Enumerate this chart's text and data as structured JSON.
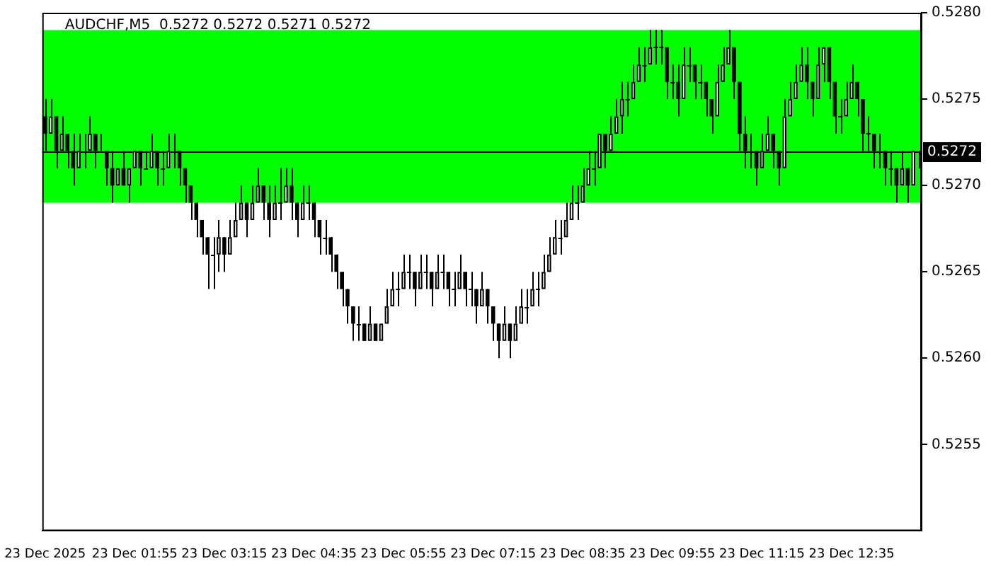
{
  "chart_data": {
    "type": "candlestick",
    "title": "AUDCHF,M5  0.5272 0.5272 0.5271 0.5272",
    "categories": [
      "23 Dec 2025",
      null,
      null,
      null,
      null,
      null,
      null,
      null,
      null,
      null,
      null,
      null,
      null,
      null,
      null,
      null,
      "23 Dec 01:55",
      null,
      null,
      null,
      null,
      null,
      null,
      null,
      null,
      null,
      null,
      null,
      null,
      null,
      null,
      null,
      "23 Dec 03:15",
      null,
      null,
      null,
      null,
      null,
      null,
      null,
      null,
      null,
      null,
      null,
      null,
      null,
      null,
      null,
      "23 Dec 04:35",
      null,
      null,
      null,
      null,
      null,
      null,
      null,
      null,
      null,
      null,
      null,
      null,
      null,
      null,
      null,
      "23 Dec 05:55",
      null,
      null,
      null,
      null,
      null,
      null,
      null,
      null,
      null,
      null,
      null,
      null,
      null,
      null,
      null,
      "23 Dec 07:15",
      null,
      null,
      null,
      null,
      null,
      null,
      null,
      null,
      null,
      null,
      null,
      null,
      null,
      null,
      null,
      "23 Dec 08:35",
      null,
      null,
      null,
      null,
      null,
      null,
      null,
      null,
      null,
      null,
      null,
      null,
      null,
      null,
      null,
      "23 Dec 09:55",
      null,
      null,
      null,
      null,
      null,
      null,
      null,
      null,
      null,
      null,
      null,
      null,
      null,
      null,
      null,
      "23 Dec 11:15",
      null,
      null,
      null,
      null,
      null,
      null,
      null,
      null,
      null,
      null,
      null,
      null,
      null,
      null,
      null,
      "23 Dec 12:35",
      null,
      null,
      null,
      null,
      null,
      null,
      null,
      null,
      null,
      null,
      null,
      null
    ],
    "ohlc": [
      [
        0.5274,
        0.5275,
        0.5272,
        0.5273
      ],
      [
        0.5273,
        0.5275,
        0.5273,
        0.5274
      ],
      [
        0.5274,
        0.5274,
        0.5271,
        0.5272
      ],
      [
        0.5272,
        0.5274,
        0.5272,
        0.5273
      ],
      [
        0.5273,
        0.5273,
        0.5271,
        0.5272
      ],
      [
        0.5272,
        0.5273,
        0.527,
        0.5271
      ],
      [
        0.5271,
        0.5273,
        0.5271,
        0.5272
      ],
      [
        0.5272,
        0.5273,
        0.5271,
        0.5272
      ],
      [
        0.5272,
        0.5274,
        0.5272,
        0.5273
      ],
      [
        0.5273,
        0.5273,
        0.5271,
        0.5272
      ],
      [
        0.5272,
        0.5273,
        0.5272,
        0.5272
      ],
      [
        0.5272,
        0.5272,
        0.527,
        0.5271
      ],
      [
        0.5271,
        0.5272,
        0.5269,
        0.527
      ],
      [
        0.527,
        0.5271,
        0.527,
        0.5271
      ],
      [
        0.5271,
        0.5272,
        0.527,
        0.527
      ],
      [
        0.527,
        0.5271,
        0.5269,
        0.5271
      ],
      [
        0.5271,
        0.5272,
        0.5271,
        0.5272
      ],
      [
        0.5272,
        0.5272,
        0.527,
        0.5271
      ],
      [
        0.5271,
        0.5272,
        0.5271,
        0.5271
      ],
      [
        0.5271,
        0.5273,
        0.5271,
        0.5272
      ],
      [
        0.5272,
        0.5272,
        0.527,
        0.5271
      ],
      [
        0.5271,
        0.5272,
        0.527,
        0.5271
      ],
      [
        0.5271,
        0.5273,
        0.5271,
        0.5272
      ],
      [
        0.5272,
        0.5273,
        0.5271,
        0.5272
      ],
      [
        0.5272,
        0.5272,
        0.527,
        0.5271
      ],
      [
        0.5271,
        0.5271,
        0.5269,
        0.527
      ],
      [
        0.527,
        0.527,
        0.5268,
        0.5269
      ],
      [
        0.5269,
        0.5269,
        0.5267,
        0.5268
      ],
      [
        0.5268,
        0.5268,
        0.5266,
        0.5267
      ],
      [
        0.5267,
        0.5267,
        0.5264,
        0.5266
      ],
      [
        0.5266,
        0.5267,
        0.5264,
        0.5266
      ],
      [
        0.5266,
        0.5268,
        0.5265,
        0.5267
      ],
      [
        0.5267,
        0.5267,
        0.5265,
        0.5266
      ],
      [
        0.5266,
        0.5268,
        0.5266,
        0.5267
      ],
      [
        0.5267,
        0.5269,
        0.5267,
        0.5268
      ],
      [
        0.5268,
        0.527,
        0.5268,
        0.5269
      ],
      [
        0.5269,
        0.5269,
        0.5267,
        0.5268
      ],
      [
        0.5268,
        0.527,
        0.5268,
        0.5269
      ],
      [
        0.5269,
        0.5271,
        0.5269,
        0.527
      ],
      [
        0.527,
        0.527,
        0.5268,
        0.5269
      ],
      [
        0.5269,
        0.527,
        0.5267,
        0.5268
      ],
      [
        0.5268,
        0.527,
        0.5268,
        0.5269
      ],
      [
        0.5269,
        0.5271,
        0.5268,
        0.5269
      ],
      [
        0.5269,
        0.5271,
        0.5269,
        0.527
      ],
      [
        0.527,
        0.5271,
        0.5268,
        0.5269
      ],
      [
        0.5269,
        0.5269,
        0.5267,
        0.5268
      ],
      [
        0.5268,
        0.527,
        0.5268,
        0.5269
      ],
      [
        0.5269,
        0.527,
        0.5268,
        0.5269
      ],
      [
        0.5269,
        0.5269,
        0.5267,
        0.5268
      ],
      [
        0.5268,
        0.5268,
        0.5266,
        0.5267
      ],
      [
        0.5267,
        0.5268,
        0.5266,
        0.5267
      ],
      [
        0.5267,
        0.5267,
        0.5265,
        0.5266
      ],
      [
        0.5266,
        0.5266,
        0.5264,
        0.5265
      ],
      [
        0.5265,
        0.5265,
        0.5263,
        0.5264
      ],
      [
        0.5264,
        0.5264,
        0.5262,
        0.5263
      ],
      [
        0.5263,
        0.5263,
        0.5261,
        0.5262
      ],
      [
        0.5262,
        0.5263,
        0.5261,
        0.5262
      ],
      [
        0.5262,
        0.5262,
        0.5261,
        0.5261
      ],
      [
        0.5261,
        0.5263,
        0.5261,
        0.5262
      ],
      [
        0.5262,
        0.5262,
        0.5261,
        0.5261
      ],
      [
        0.5261,
        0.5262,
        0.5261,
        0.5262
      ],
      [
        0.5262,
        0.5264,
        0.5262,
        0.5263
      ],
      [
        0.5263,
        0.5265,
        0.5263,
        0.5264
      ],
      [
        0.5264,
        0.5265,
        0.5263,
        0.5264
      ],
      [
        0.5264,
        0.5266,
        0.5264,
        0.5265
      ],
      [
        0.5265,
        0.5266,
        0.5264,
        0.5265
      ],
      [
        0.5265,
        0.5265,
        0.5263,
        0.5264
      ],
      [
        0.5264,
        0.5266,
        0.5264,
        0.5265
      ],
      [
        0.5265,
        0.5266,
        0.5264,
        0.5265
      ],
      [
        0.5265,
        0.5265,
        0.5263,
        0.5264
      ],
      [
        0.5264,
        0.5266,
        0.5264,
        0.5265
      ],
      [
        0.5265,
        0.5266,
        0.5264,
        0.5265
      ],
      [
        0.5265,
        0.5265,
        0.5263,
        0.5264
      ],
      [
        0.5264,
        0.5265,
        0.5263,
        0.5264
      ],
      [
        0.5264,
        0.5266,
        0.5264,
        0.5265
      ],
      [
        0.5265,
        0.5265,
        0.5263,
        0.5264
      ],
      [
        0.5264,
        0.5265,
        0.5263,
        0.5264
      ],
      [
        0.5264,
        0.5264,
        0.5262,
        0.5263
      ],
      [
        0.5263,
        0.5265,
        0.5263,
        0.5264
      ],
      [
        0.5264,
        0.5264,
        0.5262,
        0.5263
      ],
      [
        0.5263,
        0.5263,
        0.5261,
        0.5262
      ],
      [
        0.5262,
        0.5262,
        0.526,
        0.5261
      ],
      [
        0.5261,
        0.5263,
        0.5261,
        0.5262
      ],
      [
        0.5262,
        0.5262,
        0.526,
        0.5261
      ],
      [
        0.5261,
        0.5263,
        0.5261,
        0.5262
      ],
      [
        0.5262,
        0.5264,
        0.5262,
        0.5263
      ],
      [
        0.5263,
        0.5264,
        0.5262,
        0.5263
      ],
      [
        0.5263,
        0.5265,
        0.5263,
        0.5264
      ],
      [
        0.5264,
        0.5265,
        0.5263,
        0.5264
      ],
      [
        0.5264,
        0.5266,
        0.5264,
        0.5265
      ],
      [
        0.5265,
        0.5267,
        0.5265,
        0.5266
      ],
      [
        0.5266,
        0.5268,
        0.5266,
        0.5267
      ],
      [
        0.5267,
        0.5268,
        0.5266,
        0.5267
      ],
      [
        0.5267,
        0.5269,
        0.5267,
        0.5268
      ],
      [
        0.5268,
        0.527,
        0.5268,
        0.5269
      ],
      [
        0.5269,
        0.527,
        0.5268,
        0.5269
      ],
      [
        0.5269,
        0.5271,
        0.5269,
        0.527
      ],
      [
        0.527,
        0.5272,
        0.527,
        0.5271
      ],
      [
        0.5271,
        0.5272,
        0.527,
        0.5271
      ],
      [
        0.5271,
        0.5273,
        0.5271,
        0.5273
      ],
      [
        0.5273,
        0.5273,
        0.5271,
        0.5272
      ],
      [
        0.5272,
        0.5274,
        0.5272,
        0.5273
      ],
      [
        0.5273,
        0.5275,
        0.5273,
        0.5274
      ],
      [
        0.5274,
        0.5276,
        0.5273,
        0.5275
      ],
      [
        0.5275,
        0.5276,
        0.5274,
        0.5275
      ],
      [
        0.5275,
        0.5277,
        0.5275,
        0.5276
      ],
      [
        0.5276,
        0.5278,
        0.5276,
        0.5277
      ],
      [
        0.5277,
        0.5278,
        0.5276,
        0.5277
      ],
      [
        0.5277,
        0.5279,
        0.5277,
        0.5278
      ],
      [
        0.5278,
        0.5279,
        0.5277,
        0.5278
      ],
      [
        0.5278,
        0.5279,
        0.5277,
        0.5278
      ],
      [
        0.5278,
        0.5278,
        0.5275,
        0.5276
      ],
      [
        0.5276,
        0.5277,
        0.5275,
        0.5276
      ],
      [
        0.5276,
        0.5277,
        0.5274,
        0.5275
      ],
      [
        0.5275,
        0.5278,
        0.5275,
        0.5277
      ],
      [
        0.5277,
        0.5278,
        0.5276,
        0.5277
      ],
      [
        0.5277,
        0.5277,
        0.5275,
        0.5276
      ],
      [
        0.5276,
        0.5277,
        0.5275,
        0.5276
      ],
      [
        0.5276,
        0.5276,
        0.5274,
        0.5275
      ],
      [
        0.5275,
        0.5275,
        0.5273,
        0.5274
      ],
      [
        0.5274,
        0.5277,
        0.5274,
        0.5276
      ],
      [
        0.5276,
        0.5278,
        0.5276,
        0.5277
      ],
      [
        0.5277,
        0.5279,
        0.5277,
        0.5278
      ],
      [
        0.5278,
        0.5278,
        0.5275,
        0.5276
      ],
      [
        0.5276,
        0.5276,
        0.5272,
        0.5273
      ],
      [
        0.5273,
        0.5274,
        0.5271,
        0.5272
      ],
      [
        0.5272,
        0.5273,
        0.5271,
        0.5272
      ],
      [
        0.5272,
        0.5272,
        0.527,
        0.5271
      ],
      [
        0.5271,
        0.5273,
        0.5271,
        0.5272
      ],
      [
        0.5272,
        0.5274,
        0.5272,
        0.5273
      ],
      [
        0.5273,
        0.5273,
        0.5271,
        0.5272
      ],
      [
        0.5272,
        0.5272,
        0.527,
        0.5271
      ],
      [
        0.5271,
        0.5275,
        0.5271,
        0.5274
      ],
      [
        0.5274,
        0.5276,
        0.5274,
        0.5275
      ],
      [
        0.5275,
        0.5277,
        0.5275,
        0.5276
      ],
      [
        0.5276,
        0.5278,
        0.5276,
        0.5277
      ],
      [
        0.5277,
        0.5278,
        0.5275,
        0.5276
      ],
      [
        0.5276,
        0.5276,
        0.5274,
        0.5275
      ],
      [
        0.5275,
        0.5278,
        0.5275,
        0.5277
      ],
      [
        0.5277,
        0.5278,
        0.5276,
        0.5278
      ],
      [
        0.5278,
        0.5278,
        0.5275,
        0.5276
      ],
      [
        0.5276,
        0.5276,
        0.5273,
        0.5274
      ],
      [
        0.5274,
        0.5275,
        0.5273,
        0.5274
      ],
      [
        0.5274,
        0.5276,
        0.5274,
        0.5275
      ],
      [
        0.5275,
        0.5277,
        0.5275,
        0.5276
      ],
      [
        0.5276,
        0.5276,
        0.5274,
        0.5275
      ],
      [
        0.5275,
        0.5275,
        0.5272,
        0.5273
      ],
      [
        0.5273,
        0.5274,
        0.5272,
        0.5273
      ],
      [
        0.5273,
        0.5273,
        0.5271,
        0.5272
      ],
      [
        0.5272,
        0.5273,
        0.5271,
        0.5272
      ],
      [
        0.5272,
        0.5272,
        0.527,
        0.5271
      ],
      [
        0.5271,
        0.5272,
        0.527,
        0.5271
      ],
      [
        0.5271,
        0.5271,
        0.5269,
        0.527
      ],
      [
        0.527,
        0.5272,
        0.527,
        0.5271
      ],
      [
        0.5271,
        0.5271,
        0.5269,
        0.527
      ],
      [
        0.527,
        0.5272,
        0.527,
        0.5272
      ],
      [
        0.5272,
        0.5272,
        0.5271,
        0.5272
      ]
    ],
    "ylim": [
      0.525,
      0.528
    ],
    "yticks": [
      0.5255,
      {
        "value": 0.526,
        "label": "0.5260"
      },
      0.5265,
      {
        "value": 0.527,
        "label": "0.5270"
      },
      0.5275,
      {
        "value": 0.528,
        "label": "0.5280"
      }
    ],
    "ref_lines": [
      {
        "axis": "y",
        "value": 0.5272,
        "label": "0.5272",
        "color": "#000000"
      }
    ],
    "bands": [
      {
        "axis": "y",
        "from": 0.5269,
        "to": 0.5279,
        "color": "#00ff00"
      }
    ],
    "grid": false,
    "legend": false
  }
}
